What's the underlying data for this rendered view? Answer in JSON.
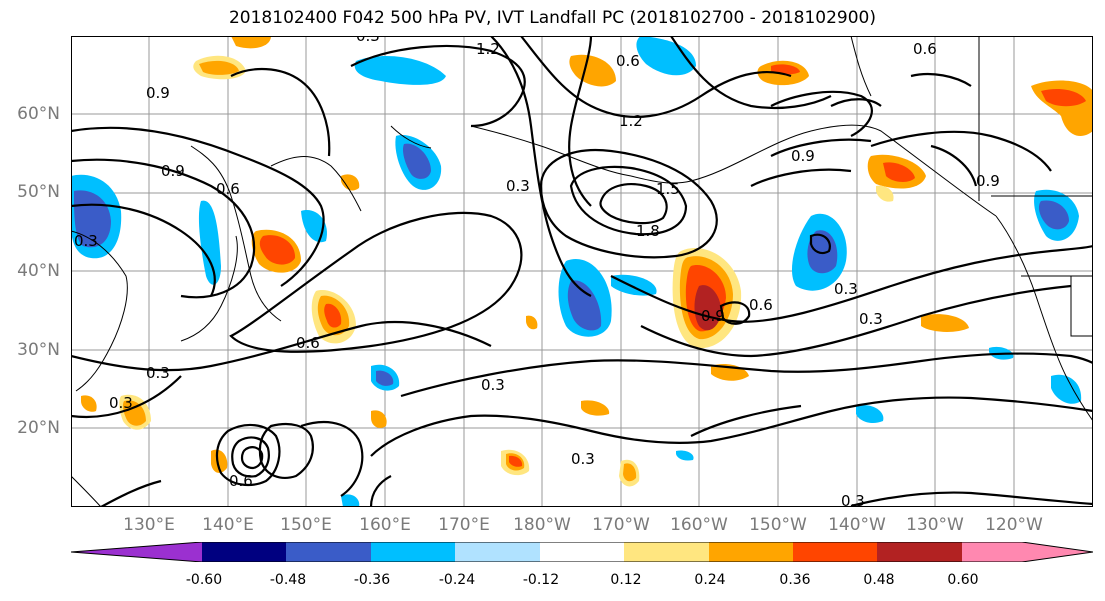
{
  "title": "2018102400 F042 500 hPa PV, IVT Landfall PC (2018102700 - 2018102900)",
  "lat_labels": [
    "60°N",
    "50°N",
    "40°N",
    "30°N",
    "20°N"
  ],
  "lon_labels": [
    "130°E",
    "140°E",
    "150°E",
    "160°E",
    "170°E",
    "180°W",
    "170°W",
    "160°W",
    "150°W",
    "140°W",
    "130°W",
    "120°W"
  ],
  "contour_labels": [
    "1.2",
    "0.9",
    "0.6",
    "0.3",
    "1.5",
    "1.8",
    "0.9",
    "0.6",
    "0.3",
    "0.3",
    "0.3",
    "0.6",
    "0.3",
    "0.3",
    "0.9",
    "0.9",
    "0.6",
    "0.3",
    "0.3",
    "0.6",
    "0.3",
    "1.2",
    "0.9",
    "0.6",
    "0.3"
  ],
  "colorbar": {
    "colors": [
      "#9b30d0",
      "#000080",
      "#3a5cc8",
      "#00bfff",
      "#b0e2ff",
      "#ffffff",
      "#ffe680",
      "#ffa500",
      "#ff4500",
      "#b22222",
      "#ff88b0"
    ],
    "tick_labels": [
      "-0.60",
      "-0.48",
      "-0.36",
      "-0.24",
      "-0.12",
      "0.12",
      "0.24",
      "0.36",
      "0.48",
      "0.60"
    ]
  }
}
